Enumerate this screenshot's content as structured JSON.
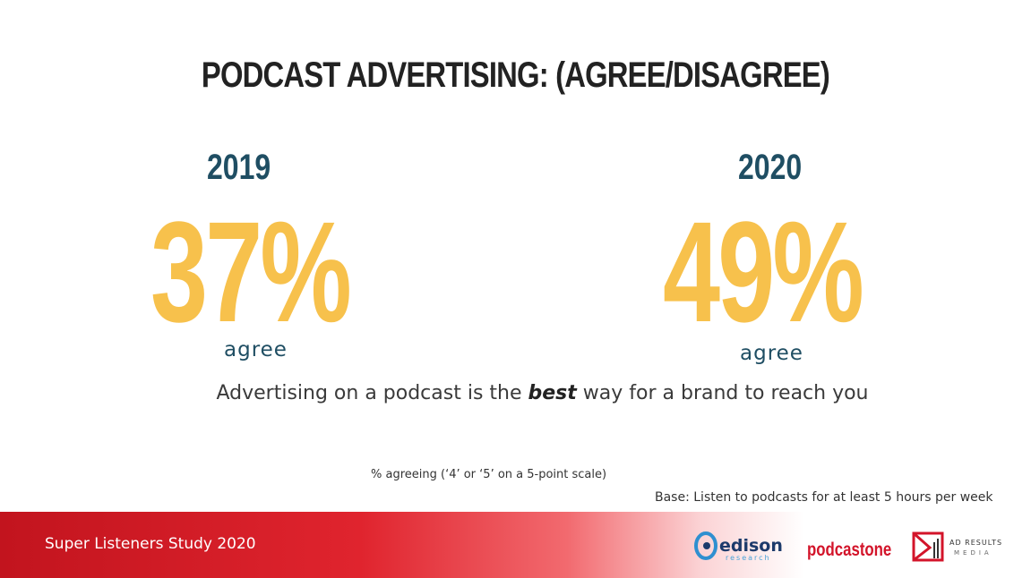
{
  "title": "PODCAST ADVERTISING: (AGREE/DISAGREE)",
  "left": {
    "year": "2019",
    "percent": "37%",
    "label": "agree"
  },
  "right": {
    "year": "2020",
    "percent": "49%",
    "label": "agree"
  },
  "statement": {
    "before": "Advertising on a podcast is the ",
    "emphasis": "best",
    "after": " way for a brand to reach you"
  },
  "note": "% agreeing (‘4’ or ‘5’ on a 5-point scale)",
  "base": "Base: Listen to podcasts for at least 5 hours per week",
  "footer": "Super Listeners Study 2020",
  "logos": {
    "edison": "edison",
    "edison_sub": "research",
    "podcastone": "podcastone",
    "adresults": "AD RESULTS",
    "adresults_sub": "MEDIA"
  },
  "colors": {
    "year": "#1f4e63",
    "percent": "#f7c14c",
    "footer": "#c2141e"
  }
}
